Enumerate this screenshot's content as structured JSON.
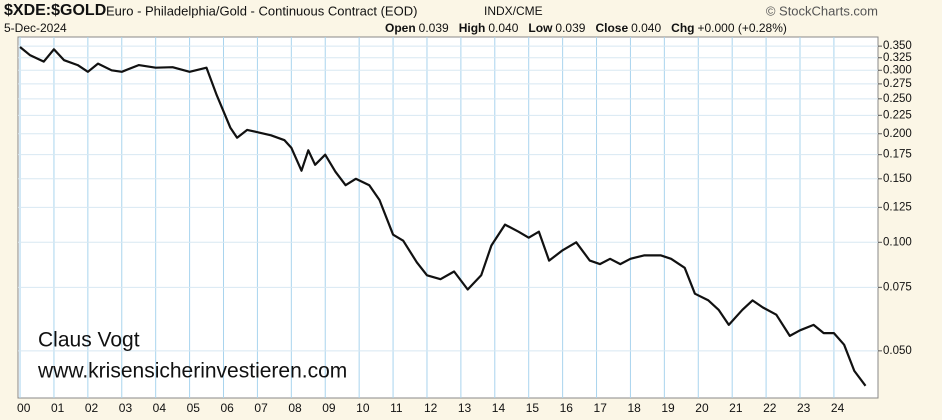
{
  "chart_data": {
    "type": "line",
    "title": "$XDE:$GOLD",
    "subtitle": "Euro - Philadelphia/Gold - Continuous Contract (EOD)",
    "exchange": "INDX/CME",
    "source": "© StockCharts.com",
    "date": "5-Dec-2024",
    "quote": [
      {
        "label": "Open",
        "value": "0.039"
      },
      {
        "label": "High",
        "value": "0.040"
      },
      {
        "label": "Low",
        "value": "0.039"
      },
      {
        "label": "Close",
        "value": "0.040"
      },
      {
        "label": "Chg",
        "value": "+0.000 (+0.28%)"
      }
    ],
    "annotations": [
      "Claus Vogt",
      "www.krisensicherinvestieren.com"
    ],
    "color": "#111111",
    "log_scale": true,
    "grid": true,
    "x": [
      2000.0,
      2000.3,
      2000.7,
      2001.0,
      2001.3,
      2001.7,
      2002.0,
      2002.3,
      2002.7,
      2003.0,
      2003.5,
      2004.0,
      2004.5,
      2005.0,
      2005.5,
      2005.8,
      2006.2,
      2006.4,
      2006.7,
      2007.0,
      2007.4,
      2007.8,
      2008.0,
      2008.3,
      2008.5,
      2008.7,
      2009.0,
      2009.3,
      2009.6,
      2009.9,
      2010.3,
      2010.6,
      2011.0,
      2011.3,
      2011.7,
      2012.0,
      2012.4,
      2012.8,
      2013.2,
      2013.6,
      2013.9,
      2014.3,
      2014.7,
      2015.0,
      2015.3,
      2015.6,
      2016.0,
      2016.4,
      2016.8,
      2017.1,
      2017.4,
      2017.7,
      2018.0,
      2018.4,
      2018.9,
      2019.2,
      2019.6,
      2019.9,
      2020.3,
      2020.6,
      2020.9,
      2021.3,
      2021.6,
      2021.9,
      2022.3,
      2022.7,
      2023.0,
      2023.4,
      2023.7,
      2024.0,
      2024.3,
      2024.6,
      2024.93
    ],
    "values": [
      0.348,
      0.33,
      0.317,
      0.343,
      0.32,
      0.31,
      0.297,
      0.313,
      0.3,
      0.297,
      0.31,
      0.305,
      0.306,
      0.297,
      0.305,
      0.256,
      0.208,
      0.195,
      0.205,
      0.202,
      0.198,
      0.192,
      0.183,
      0.158,
      0.18,
      0.164,
      0.175,
      0.157,
      0.144,
      0.15,
      0.144,
      0.131,
      0.105,
      0.101,
      0.088,
      0.081,
      0.079,
      0.083,
      0.074,
      0.081,
      0.098,
      0.112,
      0.107,
      0.103,
      0.107,
      0.089,
      0.095,
      0.1,
      0.089,
      0.087,
      0.09,
      0.087,
      0.09,
      0.092,
      0.092,
      0.09,
      0.085,
      0.072,
      0.069,
      0.065,
      0.059,
      0.065,
      0.069,
      0.066,
      0.063,
      0.055,
      0.057,
      0.059,
      0.056,
      0.056,
      0.052,
      0.044,
      0.04
    ],
    "xlim": [
      1999.94,
      2025.3
    ],
    "ylim": [
      0.037,
      0.371
    ],
    "xticks": [
      {
        "value": 2000,
        "label": "00"
      },
      {
        "value": 2001,
        "label": "01"
      },
      {
        "value": 2002,
        "label": "02"
      },
      {
        "value": 2003,
        "label": "03"
      },
      {
        "value": 2004,
        "label": "04"
      },
      {
        "value": 2005,
        "label": "05"
      },
      {
        "value": 2006,
        "label": "06"
      },
      {
        "value": 2007,
        "label": "07"
      },
      {
        "value": 2008,
        "label": "08"
      },
      {
        "value": 2009,
        "label": "09"
      },
      {
        "value": 2010,
        "label": "10"
      },
      {
        "value": 2011,
        "label": "11"
      },
      {
        "value": 2012,
        "label": "12"
      },
      {
        "value": 2013,
        "label": "13"
      },
      {
        "value": 2014,
        "label": "14"
      },
      {
        "value": 2015,
        "label": "15"
      },
      {
        "value": 2016,
        "label": "16"
      },
      {
        "value": 2017,
        "label": "17"
      },
      {
        "value": 2018,
        "label": "18"
      },
      {
        "value": 2019,
        "label": "19"
      },
      {
        "value": 2020,
        "label": "20"
      },
      {
        "value": 2021,
        "label": "21"
      },
      {
        "value": 2022,
        "label": "22"
      },
      {
        "value": 2023,
        "label": "23"
      },
      {
        "value": 2024,
        "label": "24"
      }
    ],
    "yticks": [
      {
        "value": 0.35,
        "label": "0.350"
      },
      {
        "value": 0.325,
        "label": "0.325"
      },
      {
        "value": 0.3,
        "label": "0.300"
      },
      {
        "value": 0.275,
        "label": "0.275"
      },
      {
        "value": 0.25,
        "label": "0.250"
      },
      {
        "value": 0.225,
        "label": "0.225"
      },
      {
        "value": 0.2,
        "label": "0.200"
      },
      {
        "value": 0.175,
        "label": "0.175"
      },
      {
        "value": 0.15,
        "label": "0.150"
      },
      {
        "value": 0.125,
        "label": "0.125"
      },
      {
        "value": 0.1,
        "label": "0.100"
      },
      {
        "value": 0.075,
        "label": "0.075"
      },
      {
        "value": 0.05,
        "label": "0.050"
      }
    ]
  }
}
